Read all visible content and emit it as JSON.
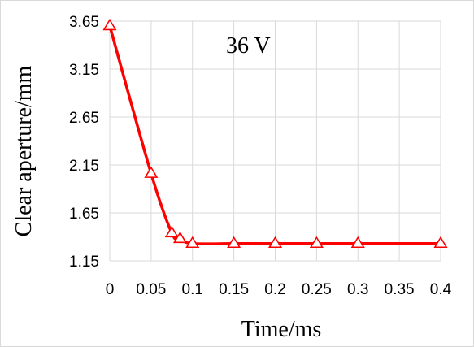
{
  "chart_data": {
    "type": "line",
    "title": "",
    "annotation": "36 V",
    "xlabel": "Time/ms",
    "ylabel": "Clear aperture/mm",
    "xlim": [
      0,
      0.4
    ],
    "ylim": [
      1.15,
      3.65
    ],
    "x_ticks": [
      "0",
      "0.05",
      "0.1",
      "0.15",
      "0.2",
      "0.25",
      "0.3",
      "0.35",
      "0.4"
    ],
    "y_ticks": [
      "1.15",
      "1.65",
      "2.15",
      "2.65",
      "3.15",
      "3.65"
    ],
    "grid": true,
    "series": [
      {
        "color": "#ff0000",
        "marker": "open-triangle",
        "x": [
          0,
          0.05,
          0.075,
          0.085,
          0.1,
          0.15,
          0.2,
          0.25,
          0.3,
          0.4
        ],
        "y": [
          3.6,
          2.06,
          1.44,
          1.38,
          1.33,
          1.33,
          1.33,
          1.33,
          1.33,
          1.33
        ]
      }
    ]
  }
}
